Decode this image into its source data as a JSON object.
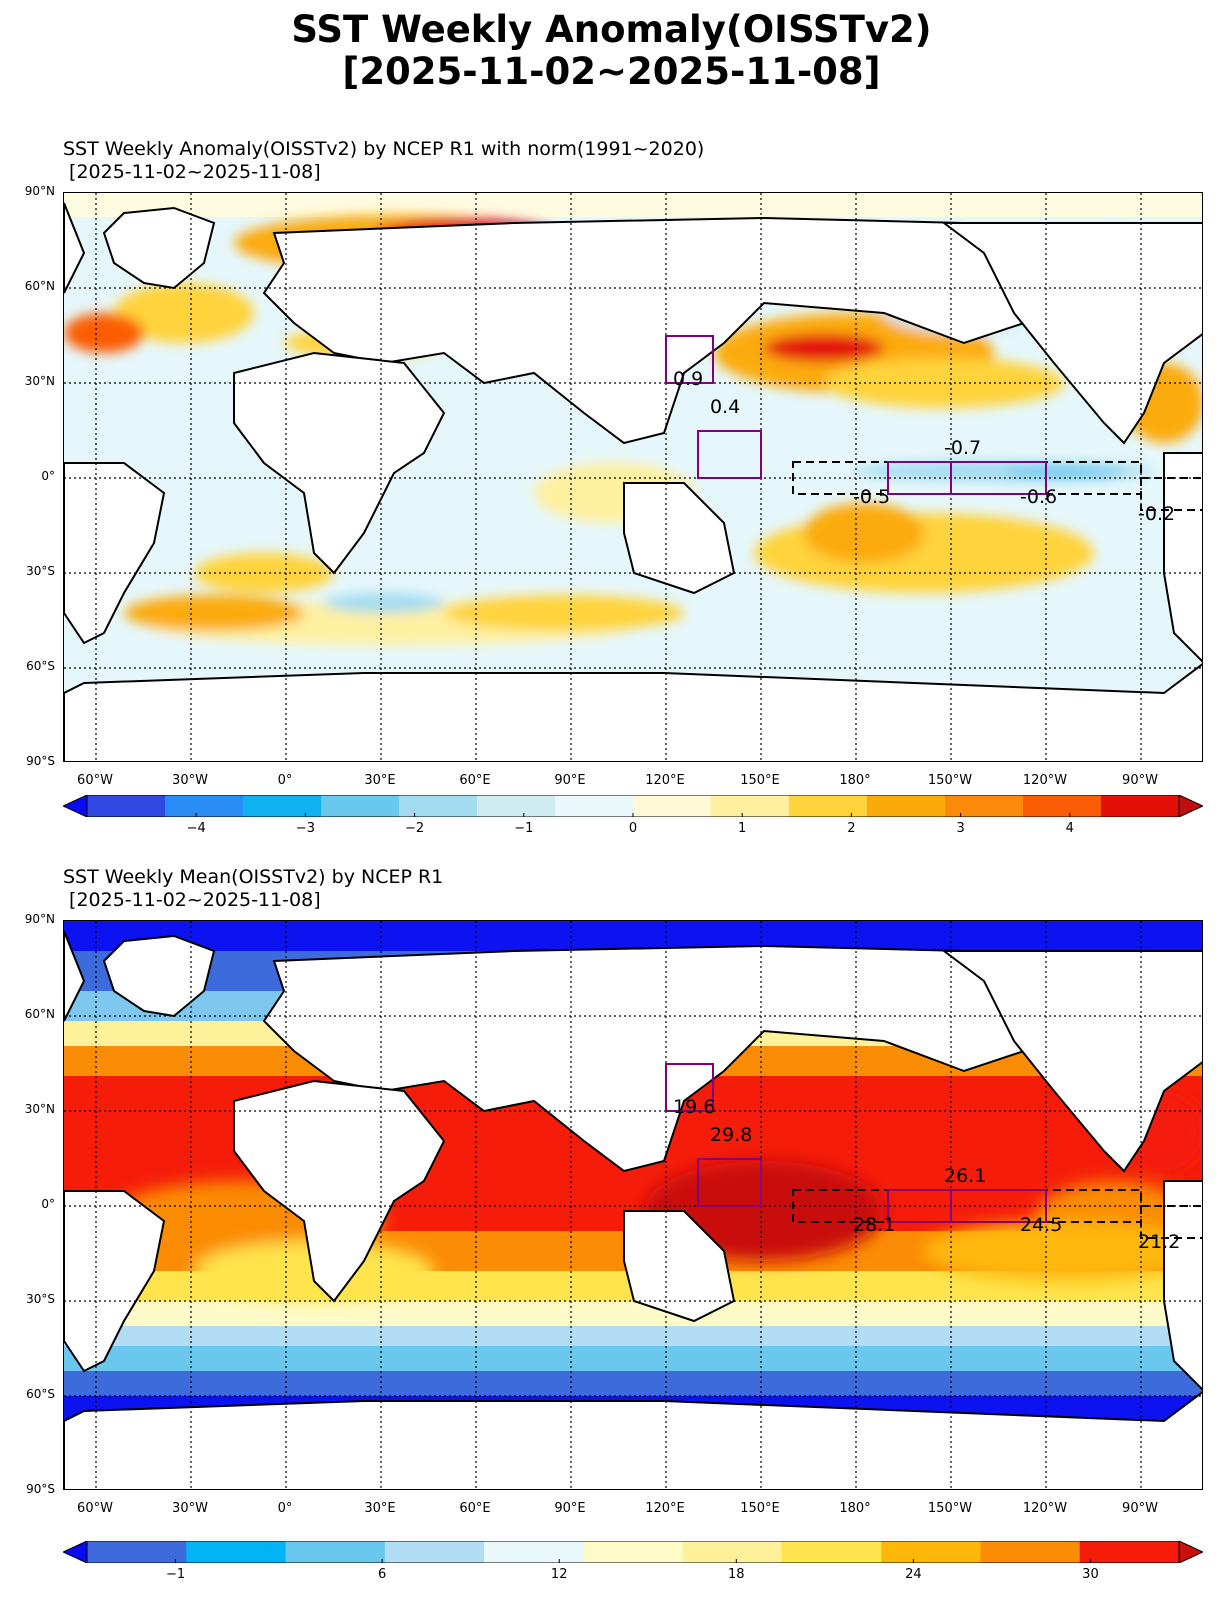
{
  "figure": {
    "title_line1": "SST Weekly Anomaly(OISSTv2)",
    "title_line2": "[2025-11-02~2025-11-08]"
  },
  "colors": {
    "land": "#ffffff",
    "coastline": "#000000",
    "region_box": "#800080",
    "nino_box": "#000000",
    "anomaly_bg": "#e6f7fb",
    "anomaly_warm": "#fde9a2",
    "anomaly_hot": "#f9a64a",
    "mean_tropics": "#f51d0a",
    "mean_warm_pool": "#c9100b",
    "mean_subtrop": "#fb8c05",
    "mean_mid": "#ffe44d",
    "mean_cool": "#7ec8f0",
    "mean_cold": "#3d6bdc",
    "mean_polar": "#0d13f0",
    "gridline": "#000000"
  },
  "lat_labels": [
    "90°N",
    "60°N",
    "30°N",
    "0°",
    "30°S",
    "60°S",
    "90°S"
  ],
  "lon_labels": [
    "60°W",
    "30°W",
    "0°",
    "30°E",
    "60°E",
    "90°E",
    "120°E",
    "150°E",
    "180°",
    "150°W",
    "120°W",
    "90°W"
  ],
  "anomaly_panel": {
    "title": "SST Weekly Anomaly(OISSTv2) by NCEP R1 with norm(1991~2020)\n [2025-11-02~2025-11-08]",
    "colorbar": {
      "ticks": [
        "−4",
        "−3",
        "−2",
        "−1",
        "0",
        "1",
        "2",
        "3",
        "4"
      ],
      "tick_values": [
        -4,
        -3,
        -2,
        -1,
        0,
        1,
        2,
        3,
        4
      ],
      "range": [
        -5,
        5
      ],
      "colors": [
        "#0a0af6",
        "#2f48e2",
        "#2a8cf5",
        "#0fb1f0",
        "#6ac7ee",
        "#a3dbf0",
        "#cfecf3",
        "#e9f8fb",
        "#fff9d8",
        "#fff0a0",
        "#ffd33b",
        "#fbab09",
        "#fb8a0c",
        "#fb5d06",
        "#e41007",
        "#c20e0e"
      ]
    },
    "regions": [
      {
        "name": "east-asia-box",
        "value": "0.9"
      },
      {
        "name": "western-pacific-box",
        "value": "0.4"
      },
      {
        "name": "nino4",
        "value": "-0.5"
      },
      {
        "name": "nino3.4",
        "value": "-0.7"
      },
      {
        "name": "nino3",
        "value": "-0.6"
      },
      {
        "name": "nino1+2",
        "value": "-0.2"
      }
    ]
  },
  "mean_panel": {
    "title": "SST Weekly Mean(OISSTv2) by NCEP R1\n [2025-11-02~2025-11-08]",
    "colorbar": {
      "ticks": [
        "−1",
        "6",
        "12",
        "18",
        "24",
        "30"
      ],
      "tick_values": [
        -1,
        6,
        12,
        18,
        24,
        30
      ],
      "range": [
        -4,
        33
      ],
      "colors": [
        "#0a0af6",
        "#3d6bdc",
        "#00b4f5",
        "#6ac7ee",
        "#b3dcf5",
        "#e9f8fb",
        "#fffbc8",
        "#fff09a",
        "#ffe44d",
        "#ffb80a",
        "#fb8c05",
        "#f51d0a",
        "#c9100b"
      ]
    },
    "regions": [
      {
        "name": "east-asia-box",
        "value": "19.6"
      },
      {
        "name": "western-pacific-box",
        "value": "29.8"
      },
      {
        "name": "nino4",
        "value": "28.1"
      },
      {
        "name": "nino3.4",
        "value": "26.1"
      },
      {
        "name": "nino3",
        "value": "24.5"
      },
      {
        "name": "nino1+2",
        "value": "21.2"
      }
    ]
  }
}
